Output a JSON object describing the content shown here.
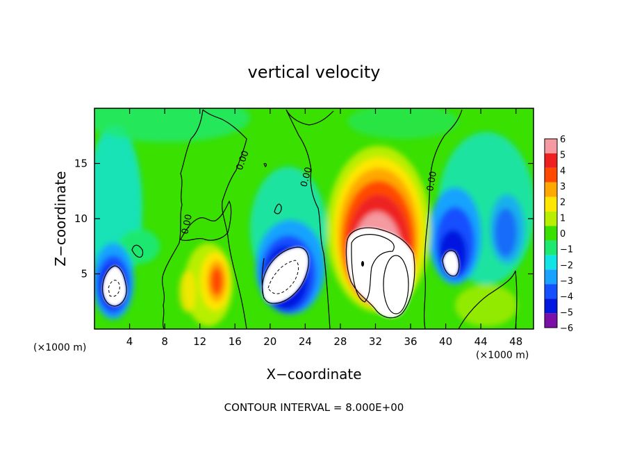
{
  "chart_data": {
    "type": "heatmap",
    "title": "vertical velocity",
    "xlabel": "X−coordinate",
    "ylabel": "Z−coordinate",
    "x_units": "(×1000 m)",
    "x_units_right": "(×1000 m)",
    "xlim": [
      0,
      50
    ],
    "ylim": [
      0,
      20
    ],
    "x_ticks": [
      "4",
      "8",
      "12",
      "16",
      "20",
      "24",
      "28",
      "32",
      "36",
      "40",
      "44",
      "48"
    ],
    "y_ticks": [
      "5",
      "10",
      "15"
    ],
    "footer": "CONTOUR INTERVAL = 8.000E+00",
    "contour_label": "0.00",
    "colorbar": {
      "levels": [
        "6",
        "5",
        "4",
        "3",
        "2",
        "1",
        "0",
        "−1",
        "−2",
        "−3",
        "−4",
        "−5",
        "−6"
      ],
      "colors": [
        "#f49aa0",
        "#ee2020",
        "#ff4a00",
        "#ffa800",
        "#ffe600",
        "#b8ee00",
        "#3ae000",
        "#1ee870",
        "#10e4e4",
        "#19a2ff",
        "#1550ff",
        "#0018e0",
        "#7a10a8"
      ]
    },
    "features": [
      {
        "name": "updraft",
        "x": 31,
        "z": 6,
        "w_max": 6
      },
      {
        "name": "updraft",
        "x": 13.5,
        "z": 4,
        "w_max": 5
      },
      {
        "name": "downdraft",
        "x": 21,
        "z": 5,
        "w_min": -6
      },
      {
        "name": "downdraft",
        "x": 2,
        "z": 3.5,
        "w_min": -6
      },
      {
        "name": "downdraft",
        "x": 40.5,
        "z": 6.5,
        "w_min": -6
      }
    ]
  }
}
